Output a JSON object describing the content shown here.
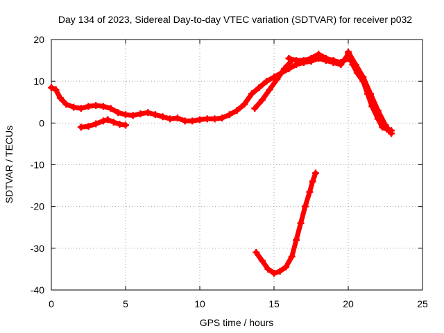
{
  "chart_data": {
    "type": "scatter",
    "title": "Day 134 of 2023, Sidereal Day-to-day VTEC variation (SDTVAR) for receiver p032",
    "xlabel": "GPS time / hours",
    "ylabel": "SDTVAR / TECUs",
    "xlim": [
      0,
      25
    ],
    "ylim": [
      -40,
      20
    ],
    "grid": true,
    "x_ticks": [
      0,
      5,
      10,
      15,
      20,
      25
    ],
    "y_ticks": [
      -40,
      -30,
      -20,
      -10,
      0,
      10,
      20
    ],
    "x_tick_labels": [
      "0",
      "5",
      "10",
      "15",
      "20",
      "25"
    ],
    "y_tick_labels": [
      "-40",
      "-30",
      "-20",
      "-10",
      "0",
      "10",
      "20"
    ],
    "series_color": "#ff0000",
    "series": [
      {
        "name": "main trace",
        "x": [
          0.0,
          0.3,
          0.6,
          1.0,
          1.5,
          2.0,
          2.5,
          3.0,
          3.5,
          4.0,
          4.5,
          5.0,
          5.5,
          6.0,
          6.5,
          7.0,
          7.5,
          8.0,
          8.5,
          9.0,
          9.5,
          10.0,
          10.5,
          11.0,
          11.5,
          12.0,
          12.5,
          13.0,
          13.5,
          14.0,
          14.5,
          15.0,
          15.5,
          16.0,
          16.5,
          17.0,
          17.5,
          18.0,
          18.5,
          19.0,
          19.5,
          20.0,
          20.3,
          20.6,
          21.0,
          21.3,
          21.6,
          22.0,
          22.3,
          22.6,
          22.9
        ],
        "y": [
          8.5,
          8.0,
          6.0,
          4.5,
          3.8,
          3.5,
          4.0,
          4.2,
          4.0,
          3.5,
          2.5,
          2.0,
          1.8,
          2.2,
          2.5,
          2.0,
          1.5,
          1.0,
          1.2,
          0.5,
          0.5,
          0.8,
          1.0,
          1.0,
          1.2,
          2.0,
          3.0,
          4.5,
          7.0,
          8.5,
          10.0,
          11.0,
          12.0,
          13.0,
          14.0,
          14.5,
          14.8,
          15.5,
          15.0,
          14.5,
          14.0,
          16.5,
          14.0,
          12.0,
          10.0,
          7.0,
          4.0,
          1.0,
          -1.0,
          -1.5,
          -1.8
        ]
      },
      {
        "name": "lower arc",
        "x": [
          2.0,
          2.5,
          3.0,
          3.5,
          3.8,
          4.2,
          4.6,
          5.0
        ],
        "y": [
          -1.0,
          -0.8,
          -0.2,
          0.5,
          0.8,
          0.2,
          -0.3,
          -0.5
        ]
      },
      {
        "name": "upper branch",
        "x": [
          13.7,
          14.2,
          14.7,
          15.2,
          15.7,
          16.2
        ],
        "y": [
          3.5,
          5.5,
          8.0,
          10.5,
          13.0,
          15.0
        ]
      },
      {
        "name": "upper plateau",
        "x": [
          16.0,
          16.5,
          17.0,
          17.5,
          18.0,
          18.5,
          19.0,
          19.5,
          20.0
        ],
        "y": [
          15.5,
          15.0,
          15.0,
          15.5,
          16.5,
          15.5,
          15.0,
          14.5,
          15.5
        ]
      },
      {
        "name": "descent branch",
        "x": [
          20.0,
          20.5,
          21.0,
          21.5,
          22.0,
          22.5,
          22.9
        ],
        "y": [
          17.0,
          14.0,
          11.0,
          7.0,
          3.0,
          -0.5,
          -2.5
        ]
      },
      {
        "name": "deep dip",
        "x": [
          13.8,
          14.2,
          14.6,
          15.0,
          15.4,
          15.8,
          16.2,
          16.5,
          16.8,
          17.1,
          17.4,
          17.6,
          17.8
        ],
        "y": [
          -31.0,
          -33.0,
          -35.0,
          -36.0,
          -35.5,
          -34.5,
          -32.0,
          -28.0,
          -24.0,
          -20.0,
          -16.5,
          -14.0,
          -12.0
        ]
      }
    ]
  }
}
